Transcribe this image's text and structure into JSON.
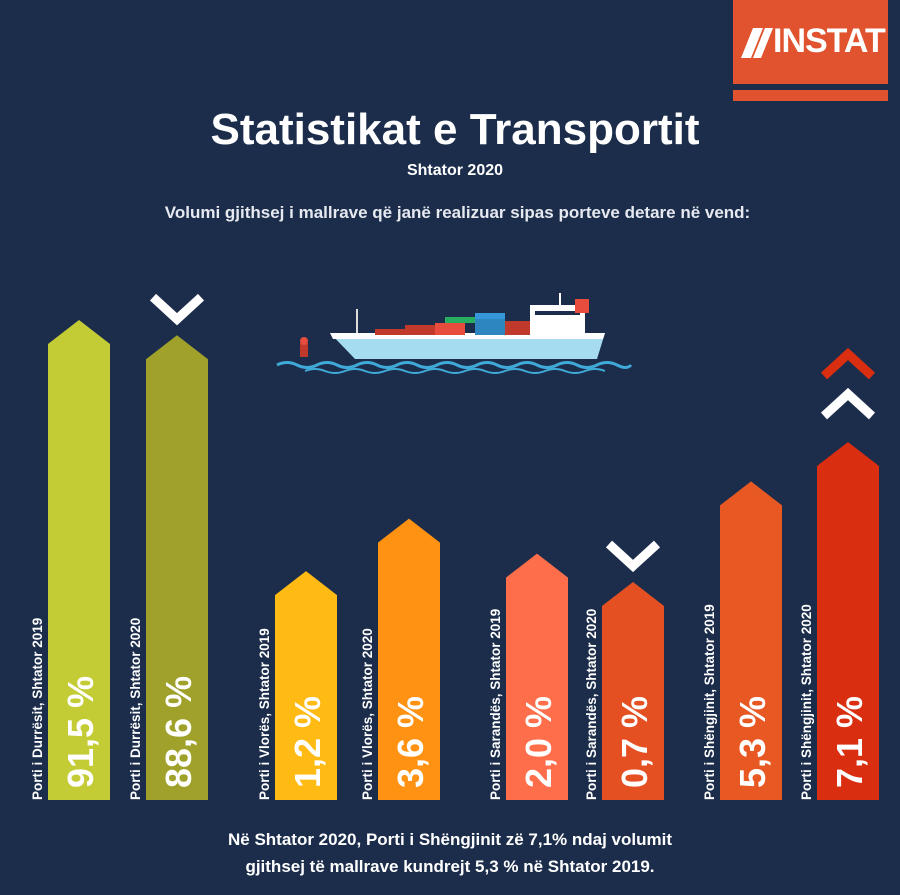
{
  "logo": {
    "text": "INSTAT",
    "color": "#e0532e"
  },
  "title": "Statistikat e Transportit",
  "subtitle": "Shtator 2020",
  "heading": "Volumi gjithsej i mallrave që janë realizuar sipas porteve detare në vend:",
  "chart_data": {
    "type": "bar",
    "unit": "%",
    "series": [
      {
        "label": "Porti i Durrësit, Shtator 2019",
        "display": "91,5 %",
        "value": 91.5,
        "color": "#c4cc35",
        "trend": "none"
      },
      {
        "label": "Porti i Durrësit, Shtator 2020",
        "display": "88,6 %",
        "value": 88.6,
        "color": "#9fa12b",
        "trend": "down"
      },
      {
        "label": "Porti i Vlorës, Shtator 2019",
        "display": "1,2 %",
        "value": 1.2,
        "color": "#ffbb14",
        "trend": "none"
      },
      {
        "label": "Porti i Vlorës, Shtator 2020",
        "display": "3,6 %",
        "value": 3.6,
        "color": "#ff9212",
        "trend": "none"
      },
      {
        "label": "Porti i Sarandës, Shtator 2019",
        "display": "2,0 %",
        "value": 2.0,
        "color": "#ff6e4a",
        "trend": "none"
      },
      {
        "label": "Porti i Sarandës, Shtator 2020",
        "display": "0,7 %",
        "value": 0.7,
        "color": "#e55022",
        "trend": "down"
      },
      {
        "label": "Porti i Shëngjinit, Shtator 2019",
        "display": "5,3 %",
        "value": 5.3,
        "color": "#e85822",
        "trend": "none"
      },
      {
        "label": "Porti i Shëngjinit, Shtator 2020",
        "display": "7,1 %",
        "value": 7.1,
        "color": "#d92e10",
        "trend": "up"
      }
    ]
  },
  "footer": {
    "line1": "Në Shtator 2020, Porti i Shëngjinit zë 7,1% ndaj volumit",
    "line2": "gjithsej të mallrave kundrejt 5,3 % në Shtator 2019."
  }
}
